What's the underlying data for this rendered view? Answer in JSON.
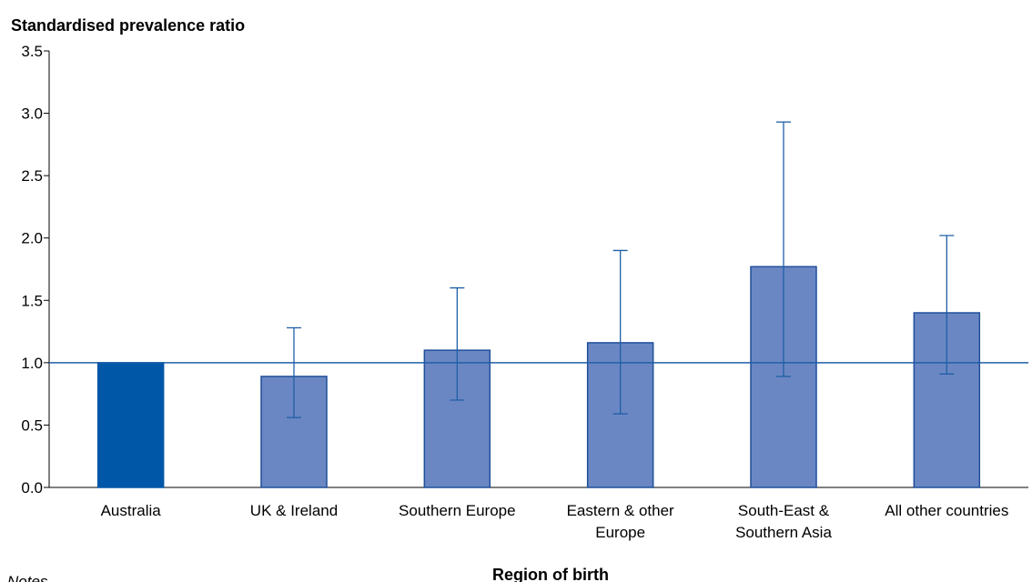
{
  "chart_data": {
    "type": "bar",
    "ylabel": "Standardised prevalence ratio",
    "xlabel": "Region of birth",
    "notes_label": "Notes",
    "ylim": [
      0,
      3.5
    ],
    "yticks": [
      "0.0",
      "0.5",
      "1.0",
      "1.5",
      "2.0",
      "2.5",
      "3.0",
      "3.5"
    ],
    "categories": [
      [
        "Australia"
      ],
      [
        "UK & Ireland"
      ],
      [
        "Southern Europe"
      ],
      [
        "Eastern & other",
        "Europe"
      ],
      [
        "South-East &",
        "Southern Asia"
      ],
      [
        "All other countries"
      ]
    ],
    "values": [
      1.0,
      0.89,
      1.1,
      1.16,
      1.77,
      1.4
    ],
    "ci_lower": [
      null,
      0.56,
      0.7,
      0.59,
      0.89,
      0.91
    ],
    "ci_upper": [
      null,
      1.28,
      1.6,
      1.9,
      2.93,
      2.02
    ],
    "reference_line": 1.0,
    "colors": {
      "reference_bar": "#0057a8",
      "bar_fill": "#6b87c3",
      "bar_stroke": "#1f4f9a",
      "error_bar": "#1f5fa6",
      "reference_line": "#1f5fa6",
      "axis": "#000000"
    },
    "grid": false,
    "legend": "none"
  }
}
